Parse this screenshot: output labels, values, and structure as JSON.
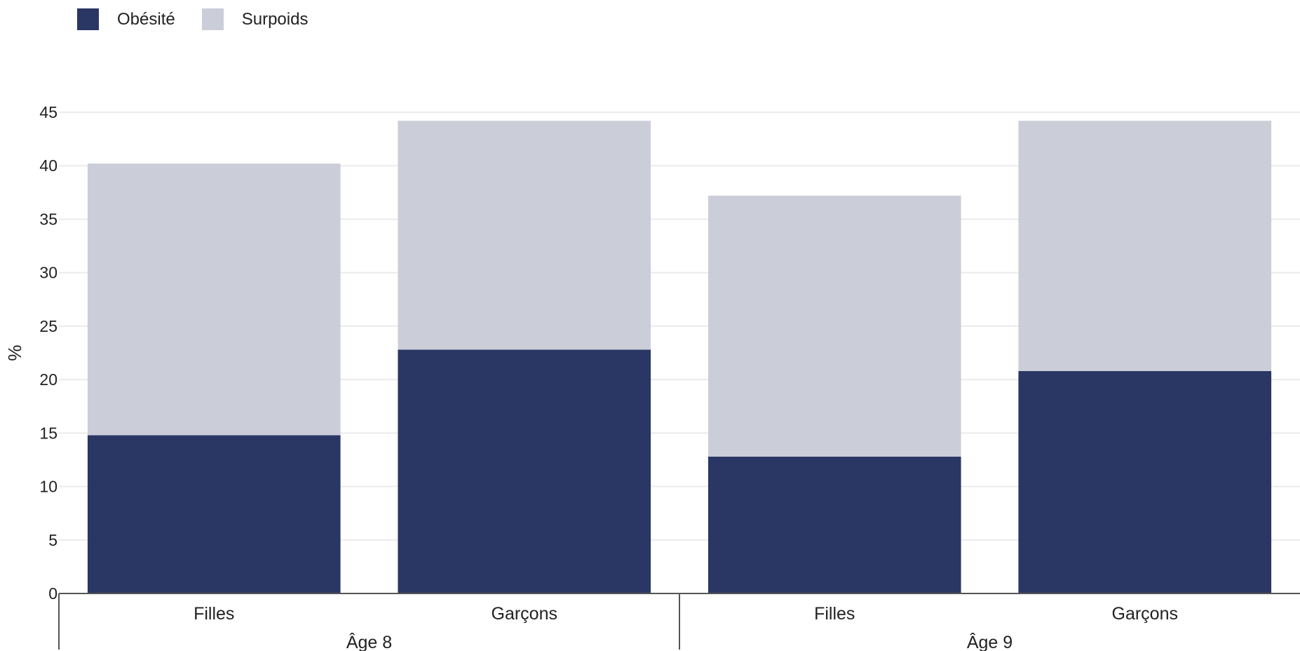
{
  "legend": {
    "items": [
      {
        "label": "Obésité",
        "color": "#2a3764"
      },
      {
        "label": "Surpoids",
        "color": "#cbcdd9"
      }
    ]
  },
  "chart_data": {
    "type": "bar",
    "stacked": true,
    "ylabel": "%",
    "ylim": [
      0,
      45
    ],
    "yticks": [
      0,
      5,
      10,
      15,
      20,
      25,
      30,
      35,
      40,
      45
    ],
    "grid": true,
    "legend_position": "top-left",
    "groups": [
      {
        "label": "Âge 8",
        "categories": [
          "Filles",
          "Garçons"
        ]
      },
      {
        "label": "Âge 9",
        "categories": [
          "Filles",
          "Garçons"
        ]
      }
    ],
    "categories": [
      "Filles",
      "Garçons",
      "Filles",
      "Garçons"
    ],
    "series": [
      {
        "name": "Obésité",
        "color": "#2a3764",
        "values": [
          14.8,
          22.8,
          12.8,
          20.8
        ]
      },
      {
        "name": "Surpoids",
        "color": "#cbcdd9",
        "values": [
          25.4,
          21.4,
          24.4,
          23.4
        ]
      }
    ]
  }
}
